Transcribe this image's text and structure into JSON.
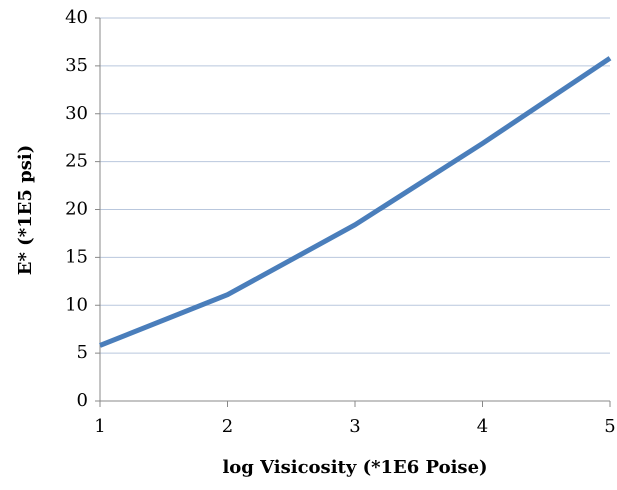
{
  "chart_data": {
    "type": "line",
    "x_label": "log Visicosity (*1E6 Poise)",
    "y_label": "E* (*1E5 psi)",
    "x": [
      1,
      2,
      3,
      4,
      5
    ],
    "series": [
      {
        "name": "E*",
        "color": "#4a7ebb",
        "values": [
          5.8,
          11.1,
          18.4,
          26.9,
          35.8
        ]
      }
    ],
    "xlim": [
      1,
      5
    ],
    "xticks": [
      1,
      2,
      3,
      4,
      5
    ],
    "ylim": [
      0,
      40
    ],
    "yticks": [
      0,
      5,
      10,
      15,
      20,
      25,
      30,
      35,
      40
    ],
    "grid": true
  }
}
